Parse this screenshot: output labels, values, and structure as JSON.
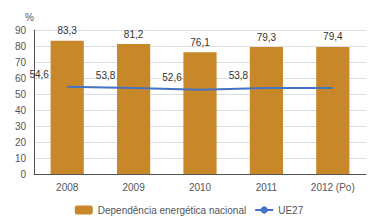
{
  "chart_data": {
    "type": "bar",
    "ylabel": "%",
    "categories": [
      "2008",
      "2009",
      "2010",
      "2011",
      "2012 (Po)"
    ],
    "series": [
      {
        "name": "Dependência energética nacional",
        "type": "bar",
        "color": "#c8882a",
        "values": [
          83.3,
          81.2,
          76.1,
          79.3,
          79.4
        ],
        "value_labels": [
          "83,3",
          "81,2",
          "76,1",
          "79,3",
          "79,4"
        ]
      },
      {
        "name": "UE27",
        "type": "line",
        "color": "#4472c4",
        "values": [
          54.6,
          53.8,
          52.6,
          53.8,
          53.8
        ],
        "value_labels": [
          "54,6",
          "53,8",
          "52,6",
          "53,8",
          null
        ]
      }
    ],
    "ylim": [
      0,
      90
    ],
    "yticks": [
      0,
      10,
      20,
      30,
      40,
      50,
      60,
      70,
      80,
      90
    ],
    "grid": true,
    "legend": "bottom",
    "data_labels": true
  }
}
